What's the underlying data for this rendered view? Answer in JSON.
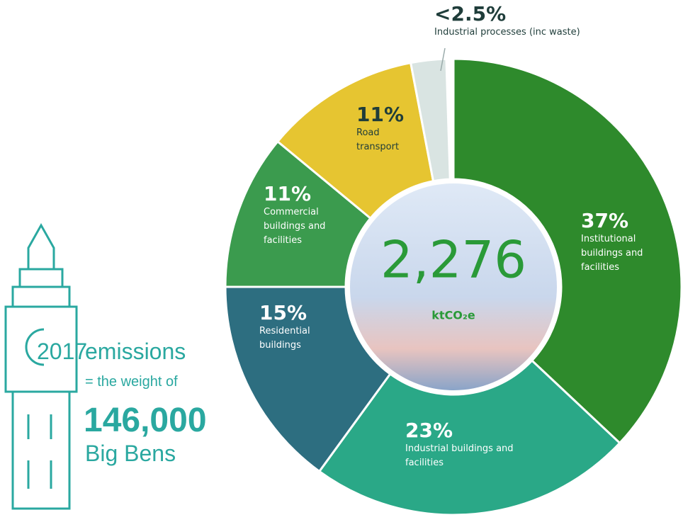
{
  "chart_data": {
    "type": "donut",
    "categories": [
      "Institutional buildings and facilities",
      "Industrial buildings and facilities",
      "Residential buildings",
      "Commercial buildings and facilities",
      "Road transport",
      "Industrial processes (inc waste)"
    ],
    "values": [
      37,
      23,
      15,
      11,
      11,
      2.5
    ],
    "value_labels": [
      "37%",
      "23%",
      "15%",
      "11%",
      "11%",
      "<2.5%"
    ],
    "colors": [
      "#2e8a2c",
      "#2aa887",
      "#2d6e80",
      "#3b9b4e",
      "#e6c531",
      "#d9e4e2"
    ],
    "center_value": "2,276",
    "center_unit": "ktCO₂e"
  },
  "side": {
    "year": "2017",
    "emissions": "emissions",
    "comparison": "= the weight of",
    "count": "146,000",
    "unit": "Big Bens"
  }
}
